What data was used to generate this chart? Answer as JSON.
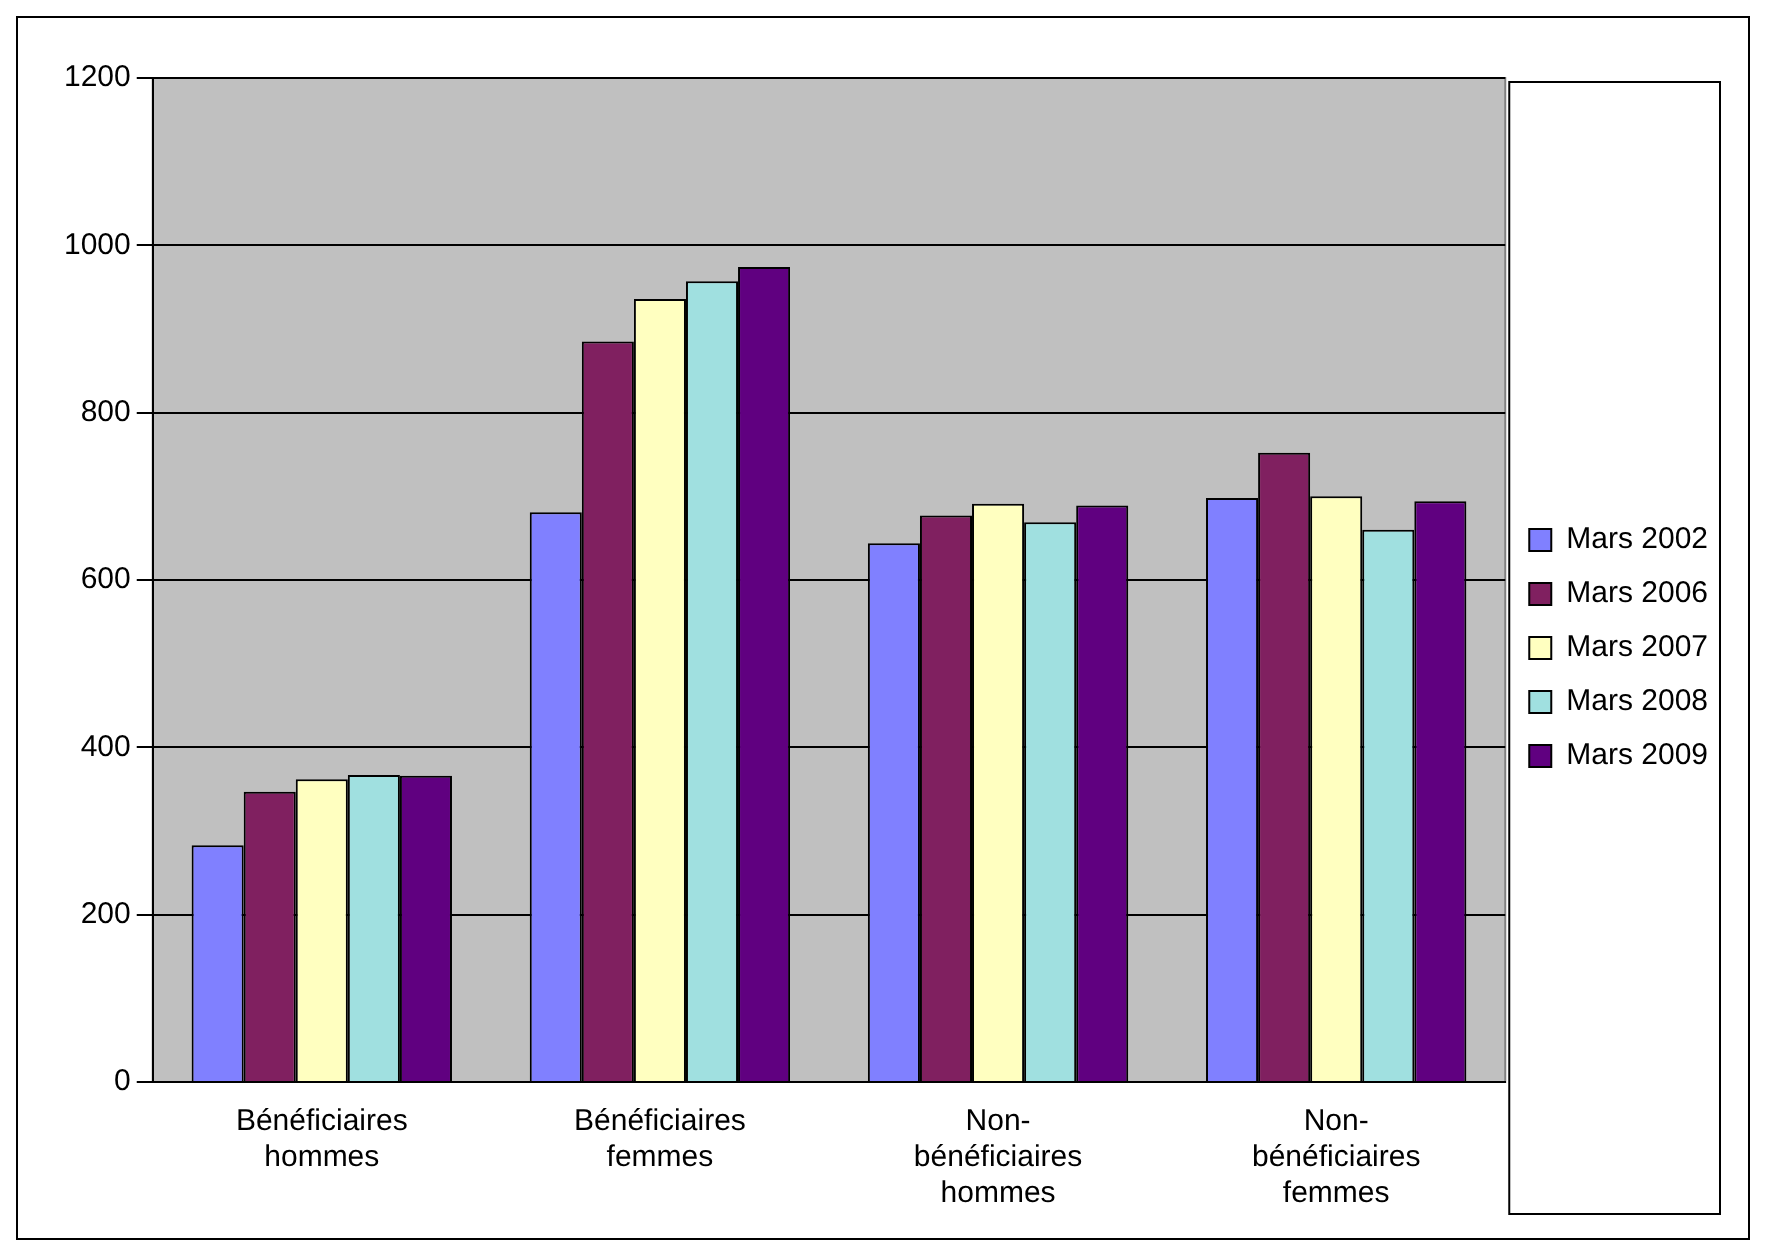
{
  "chart_data": {
    "type": "bar",
    "categories": [
      "Bénéficiaires hommes",
      "Bénéficiaires femmes",
      "Non-bénéficiaires hommes",
      "Non-bénéficiaires femmes"
    ],
    "series": [
      {
        "name": "Mars 2002",
        "color": "#8080ff",
        "values": [
          283,
          681,
          644,
          698
        ]
      },
      {
        "name": "Mars 2006",
        "color": "#802060",
        "values": [
          347,
          885,
          677,
          752
        ]
      },
      {
        "name": "Mars 2007",
        "color": "#ffffc0",
        "values": [
          362,
          936,
          691,
          700
        ]
      },
      {
        "name": "Mars 2008",
        "color": "#a0e0e0",
        "values": [
          367,
          957,
          669,
          660
        ]
      },
      {
        "name": "Mars 2009",
        "color": "#600080",
        "values": [
          366,
          974,
          689,
          694
        ]
      }
    ],
    "ylim": [
      0,
      1200
    ],
    "yticks": [
      0,
      200,
      400,
      600,
      800,
      1000,
      1200
    ],
    "grid": "y",
    "legend": "right"
  }
}
